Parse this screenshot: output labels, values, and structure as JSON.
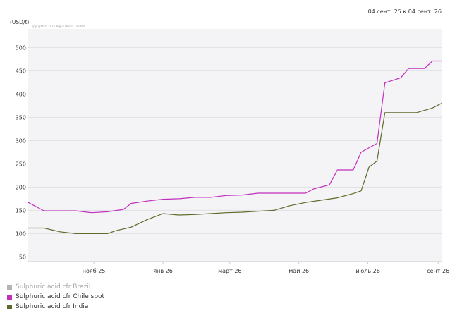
{
  "chart_data": {
    "type": "line",
    "date_range": "04 сент. 25 к 04 сент. 26",
    "unit_label": "(USD/t)",
    "copyright": "Copyright © 2026 Argus Media Limited",
    "ylim": [
      40,
      540
    ],
    "yticks": [
      50,
      100,
      150,
      200,
      250,
      300,
      350,
      400,
      450,
      500
    ],
    "xlim": [
      "2025-09-04",
      "2026-09-04"
    ],
    "xticks": [
      {
        "label": "нояб 25",
        "date": "2025-11-01"
      },
      {
        "label": "янв 26",
        "date": "2026-01-01"
      },
      {
        "label": "март 26",
        "date": "2026-03-01"
      },
      {
        "label": "май 26",
        "date": "2026-05-01"
      },
      {
        "label": "июль 26",
        "date": "2026-07-01"
      },
      {
        "label": "сент 26",
        "date": "2026-09-01"
      }
    ],
    "grid": true,
    "legend_position": "bottom-left",
    "series": [
      {
        "name": "Sulphuric acid cfr Brazil",
        "color": "#b4b4b4",
        "points": []
      },
      {
        "name": "Sulphuric acid cfr Chile spot",
        "color": "#c12fbf",
        "points": [
          [
            "2025-09-04",
            167
          ],
          [
            "2025-09-18",
            149
          ],
          [
            "2025-10-02",
            149
          ],
          [
            "2025-10-16",
            149
          ],
          [
            "2025-10-30",
            145
          ],
          [
            "2025-11-13",
            147
          ],
          [
            "2025-11-27",
            152
          ],
          [
            "2025-12-04",
            165
          ],
          [
            "2025-12-18",
            170
          ],
          [
            "2026-01-01",
            174
          ],
          [
            "2026-01-15",
            175
          ],
          [
            "2026-01-29",
            178
          ],
          [
            "2026-02-12",
            178
          ],
          [
            "2026-02-26",
            182
          ],
          [
            "2026-03-12",
            183
          ],
          [
            "2026-03-26",
            187
          ],
          [
            "2026-04-09",
            187
          ],
          [
            "2026-04-23",
            187
          ],
          [
            "2026-05-07",
            187
          ],
          [
            "2026-05-14",
            196
          ],
          [
            "2026-05-28",
            205
          ],
          [
            "2026-06-04",
            237
          ],
          [
            "2026-06-18",
            237
          ],
          [
            "2026-06-25",
            275
          ],
          [
            "2026-07-09",
            294
          ],
          [
            "2026-07-16",
            424
          ],
          [
            "2026-07-30",
            435
          ],
          [
            "2026-08-06",
            455
          ],
          [
            "2026-08-20",
            455
          ],
          [
            "2026-08-27",
            471
          ],
          [
            "2026-09-04",
            471
          ]
        ]
      },
      {
        "name": "Sulphuric acid cfr India",
        "color": "#5b6b2a",
        "points": [
          [
            "2025-09-04",
            112
          ],
          [
            "2025-09-18",
            112
          ],
          [
            "2025-10-02",
            104
          ],
          [
            "2025-10-16",
            100
          ],
          [
            "2025-10-30",
            100
          ],
          [
            "2025-11-13",
            100
          ],
          [
            "2025-11-20",
            106
          ],
          [
            "2025-12-04",
            114
          ],
          [
            "2025-12-18",
            130
          ],
          [
            "2026-01-01",
            143
          ],
          [
            "2026-01-15",
            140
          ],
          [
            "2026-01-29",
            141
          ],
          [
            "2026-02-12",
            143
          ],
          [
            "2026-02-26",
            145
          ],
          [
            "2026-03-12",
            146
          ],
          [
            "2026-03-26",
            148
          ],
          [
            "2026-04-09",
            150
          ],
          [
            "2026-04-23",
            160
          ],
          [
            "2026-05-07",
            167
          ],
          [
            "2026-05-21",
            172
          ],
          [
            "2026-06-04",
            177
          ],
          [
            "2026-06-18",
            186
          ],
          [
            "2026-06-25",
            192
          ],
          [
            "2026-07-02",
            243
          ],
          [
            "2026-07-09",
            256
          ],
          [
            "2026-07-16",
            360
          ],
          [
            "2026-07-30",
            360
          ],
          [
            "2026-08-13",
            360
          ],
          [
            "2026-08-27",
            370
          ],
          [
            "2026-09-04",
            380
          ]
        ]
      }
    ]
  }
}
